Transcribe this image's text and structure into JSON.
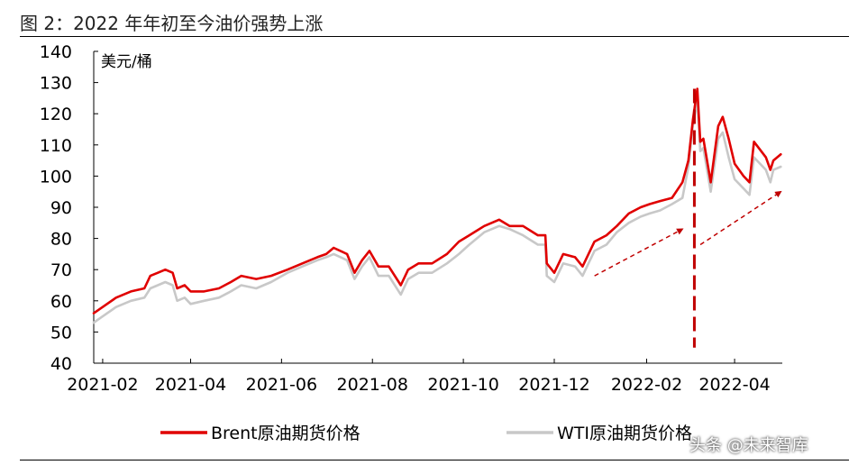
{
  "title": "图 2：2022 年年初至今油价强势上涨",
  "watermark": "头条 @未来智库",
  "chart_data": {
    "type": "line",
    "ylabel": "美元/桶",
    "ylim": [
      40,
      140
    ],
    "yticks": [
      40,
      50,
      60,
      70,
      80,
      90,
      100,
      110,
      120,
      130,
      140
    ],
    "xlim": [
      "2021-01-26",
      "2022-05-03"
    ],
    "xticks": [
      "2021-02",
      "2021-04",
      "2021-06",
      "2021-08",
      "2021-10",
      "2021-12",
      "2022-02",
      "2022-04"
    ],
    "grid": false,
    "legend_position": "bottom",
    "series": [
      {
        "name": "Brent原油期货价格",
        "color": "#e00000",
        "points": [
          [
            "2021-01-26",
            56
          ],
          [
            "2021-02-01",
            58
          ],
          [
            "2021-02-10",
            61
          ],
          [
            "2021-02-20",
            63
          ],
          [
            "2021-03-01",
            64
          ],
          [
            "2021-03-05",
            68
          ],
          [
            "2021-03-10",
            69
          ],
          [
            "2021-03-15",
            70
          ],
          [
            "2021-03-20",
            69
          ],
          [
            "2021-03-23",
            64
          ],
          [
            "2021-03-28",
            65
          ],
          [
            "2021-04-01",
            63
          ],
          [
            "2021-04-10",
            63
          ],
          [
            "2021-04-20",
            64
          ],
          [
            "2021-04-28",
            66
          ],
          [
            "2021-05-05",
            68
          ],
          [
            "2021-05-15",
            67
          ],
          [
            "2021-05-25",
            68
          ],
          [
            "2021-06-05",
            70
          ],
          [
            "2021-06-15",
            72
          ],
          [
            "2021-06-25",
            74
          ],
          [
            "2021-07-01",
            75
          ],
          [
            "2021-07-06",
            77
          ],
          [
            "2021-07-15",
            75
          ],
          [
            "2021-07-20",
            69
          ],
          [
            "2021-07-25",
            73
          ],
          [
            "2021-07-30",
            76
          ],
          [
            "2021-08-05",
            71
          ],
          [
            "2021-08-12",
            71
          ],
          [
            "2021-08-20",
            65
          ],
          [
            "2021-08-25",
            70
          ],
          [
            "2021-09-01",
            72
          ],
          [
            "2021-09-10",
            72
          ],
          [
            "2021-09-20",
            75
          ],
          [
            "2021-09-28",
            79
          ],
          [
            "2021-10-05",
            81
          ],
          [
            "2021-10-15",
            84
          ],
          [
            "2021-10-25",
            86
          ],
          [
            "2021-11-01",
            84
          ],
          [
            "2021-11-10",
            84
          ],
          [
            "2021-11-20",
            81
          ],
          [
            "2021-11-25",
            81
          ],
          [
            "2021-11-26",
            72
          ],
          [
            "2021-12-01",
            69
          ],
          [
            "2021-12-07",
            75
          ],
          [
            "2021-12-15",
            74
          ],
          [
            "2021-12-20",
            71
          ],
          [
            "2021-12-28",
            79
          ],
          [
            "2022-01-05",
            81
          ],
          [
            "2022-01-12",
            84
          ],
          [
            "2022-01-20",
            88
          ],
          [
            "2022-01-28",
            90
          ],
          [
            "2022-02-03",
            91
          ],
          [
            "2022-02-10",
            92
          ],
          [
            "2022-02-18",
            93
          ],
          [
            "2022-02-25",
            98
          ],
          [
            "2022-03-01",
            105
          ],
          [
            "2022-03-04",
            118
          ],
          [
            "2022-03-07",
            128
          ],
          [
            "2022-03-09",
            111
          ],
          [
            "2022-03-11",
            112
          ],
          [
            "2022-03-16",
            98
          ],
          [
            "2022-03-21",
            116
          ],
          [
            "2022-03-24",
            119
          ],
          [
            "2022-03-28",
            112
          ],
          [
            "2022-04-01",
            104
          ],
          [
            "2022-04-07",
            100
          ],
          [
            "2022-04-11",
            98
          ],
          [
            "2022-04-14",
            111
          ],
          [
            "2022-04-22",
            106
          ],
          [
            "2022-04-25",
            102
          ],
          [
            "2022-04-27",
            105
          ],
          [
            "2022-05-02",
            107
          ]
        ]
      },
      {
        "name": "WTI原油期货价格",
        "color": "#c8c8c8",
        "points": [
          [
            "2021-01-26",
            53
          ],
          [
            "2021-02-01",
            55
          ],
          [
            "2021-02-10",
            58
          ],
          [
            "2021-02-20",
            60
          ],
          [
            "2021-03-01",
            61
          ],
          [
            "2021-03-05",
            64
          ],
          [
            "2021-03-10",
            65
          ],
          [
            "2021-03-15",
            66
          ],
          [
            "2021-03-20",
            65
          ],
          [
            "2021-03-23",
            60
          ],
          [
            "2021-03-28",
            61
          ],
          [
            "2021-04-01",
            59
          ],
          [
            "2021-04-10",
            60
          ],
          [
            "2021-04-20",
            61
          ],
          [
            "2021-04-28",
            63
          ],
          [
            "2021-05-05",
            65
          ],
          [
            "2021-05-15",
            64
          ],
          [
            "2021-05-25",
            66
          ],
          [
            "2021-06-05",
            69
          ],
          [
            "2021-06-15",
            71
          ],
          [
            "2021-06-25",
            73
          ],
          [
            "2021-07-01",
            74
          ],
          [
            "2021-07-06",
            75
          ],
          [
            "2021-07-15",
            73
          ],
          [
            "2021-07-20",
            67
          ],
          [
            "2021-07-25",
            71
          ],
          [
            "2021-07-30",
            74
          ],
          [
            "2021-08-05",
            68
          ],
          [
            "2021-08-12",
            68
          ],
          [
            "2021-08-20",
            62
          ],
          [
            "2021-08-25",
            67
          ],
          [
            "2021-09-01",
            69
          ],
          [
            "2021-09-10",
            69
          ],
          [
            "2021-09-20",
            72
          ],
          [
            "2021-09-28",
            75
          ],
          [
            "2021-10-05",
            78
          ],
          [
            "2021-10-15",
            82
          ],
          [
            "2021-10-25",
            84
          ],
          [
            "2021-11-01",
            83
          ],
          [
            "2021-11-10",
            81
          ],
          [
            "2021-11-20",
            78
          ],
          [
            "2021-11-25",
            78
          ],
          [
            "2021-11-26",
            68
          ],
          [
            "2021-12-01",
            66
          ],
          [
            "2021-12-07",
            72
          ],
          [
            "2021-12-15",
            71
          ],
          [
            "2021-12-20",
            68
          ],
          [
            "2021-12-28",
            76
          ],
          [
            "2022-01-05",
            78
          ],
          [
            "2022-01-12",
            82
          ],
          [
            "2022-01-20",
            85
          ],
          [
            "2022-01-28",
            87
          ],
          [
            "2022-02-03",
            88
          ],
          [
            "2022-02-10",
            89
          ],
          [
            "2022-02-18",
            91
          ],
          [
            "2022-02-25",
            93
          ],
          [
            "2022-03-01",
            103
          ],
          [
            "2022-03-04",
            116
          ],
          [
            "2022-03-07",
            124
          ],
          [
            "2022-03-09",
            108
          ],
          [
            "2022-03-11",
            109
          ],
          [
            "2022-03-16",
            95
          ],
          [
            "2022-03-21",
            112
          ],
          [
            "2022-03-24",
            114
          ],
          [
            "2022-03-28",
            106
          ],
          [
            "2022-04-01",
            99
          ],
          [
            "2022-04-07",
            96
          ],
          [
            "2022-04-11",
            94
          ],
          [
            "2022-04-14",
            106
          ],
          [
            "2022-04-22",
            102
          ],
          [
            "2022-04-25",
            98
          ],
          [
            "2022-04-27",
            102
          ],
          [
            "2022-05-02",
            103
          ]
        ]
      }
    ],
    "annotations": [
      {
        "type": "dashed-arrow",
        "color": "#c00000",
        "from": [
          "2021-12-28",
          68
        ],
        "to": [
          "2022-02-25",
          83
        ]
      },
      {
        "type": "dashed-arrow",
        "color": "#c00000",
        "from": [
          "2022-03-09",
          78
        ],
        "to": [
          "2022-05-02",
          95
        ]
      },
      {
        "type": "dashed-vertical-line",
        "color": "#c00000",
        "x": "2022-03-05",
        "from": 45,
        "to": 128
      }
    ]
  }
}
